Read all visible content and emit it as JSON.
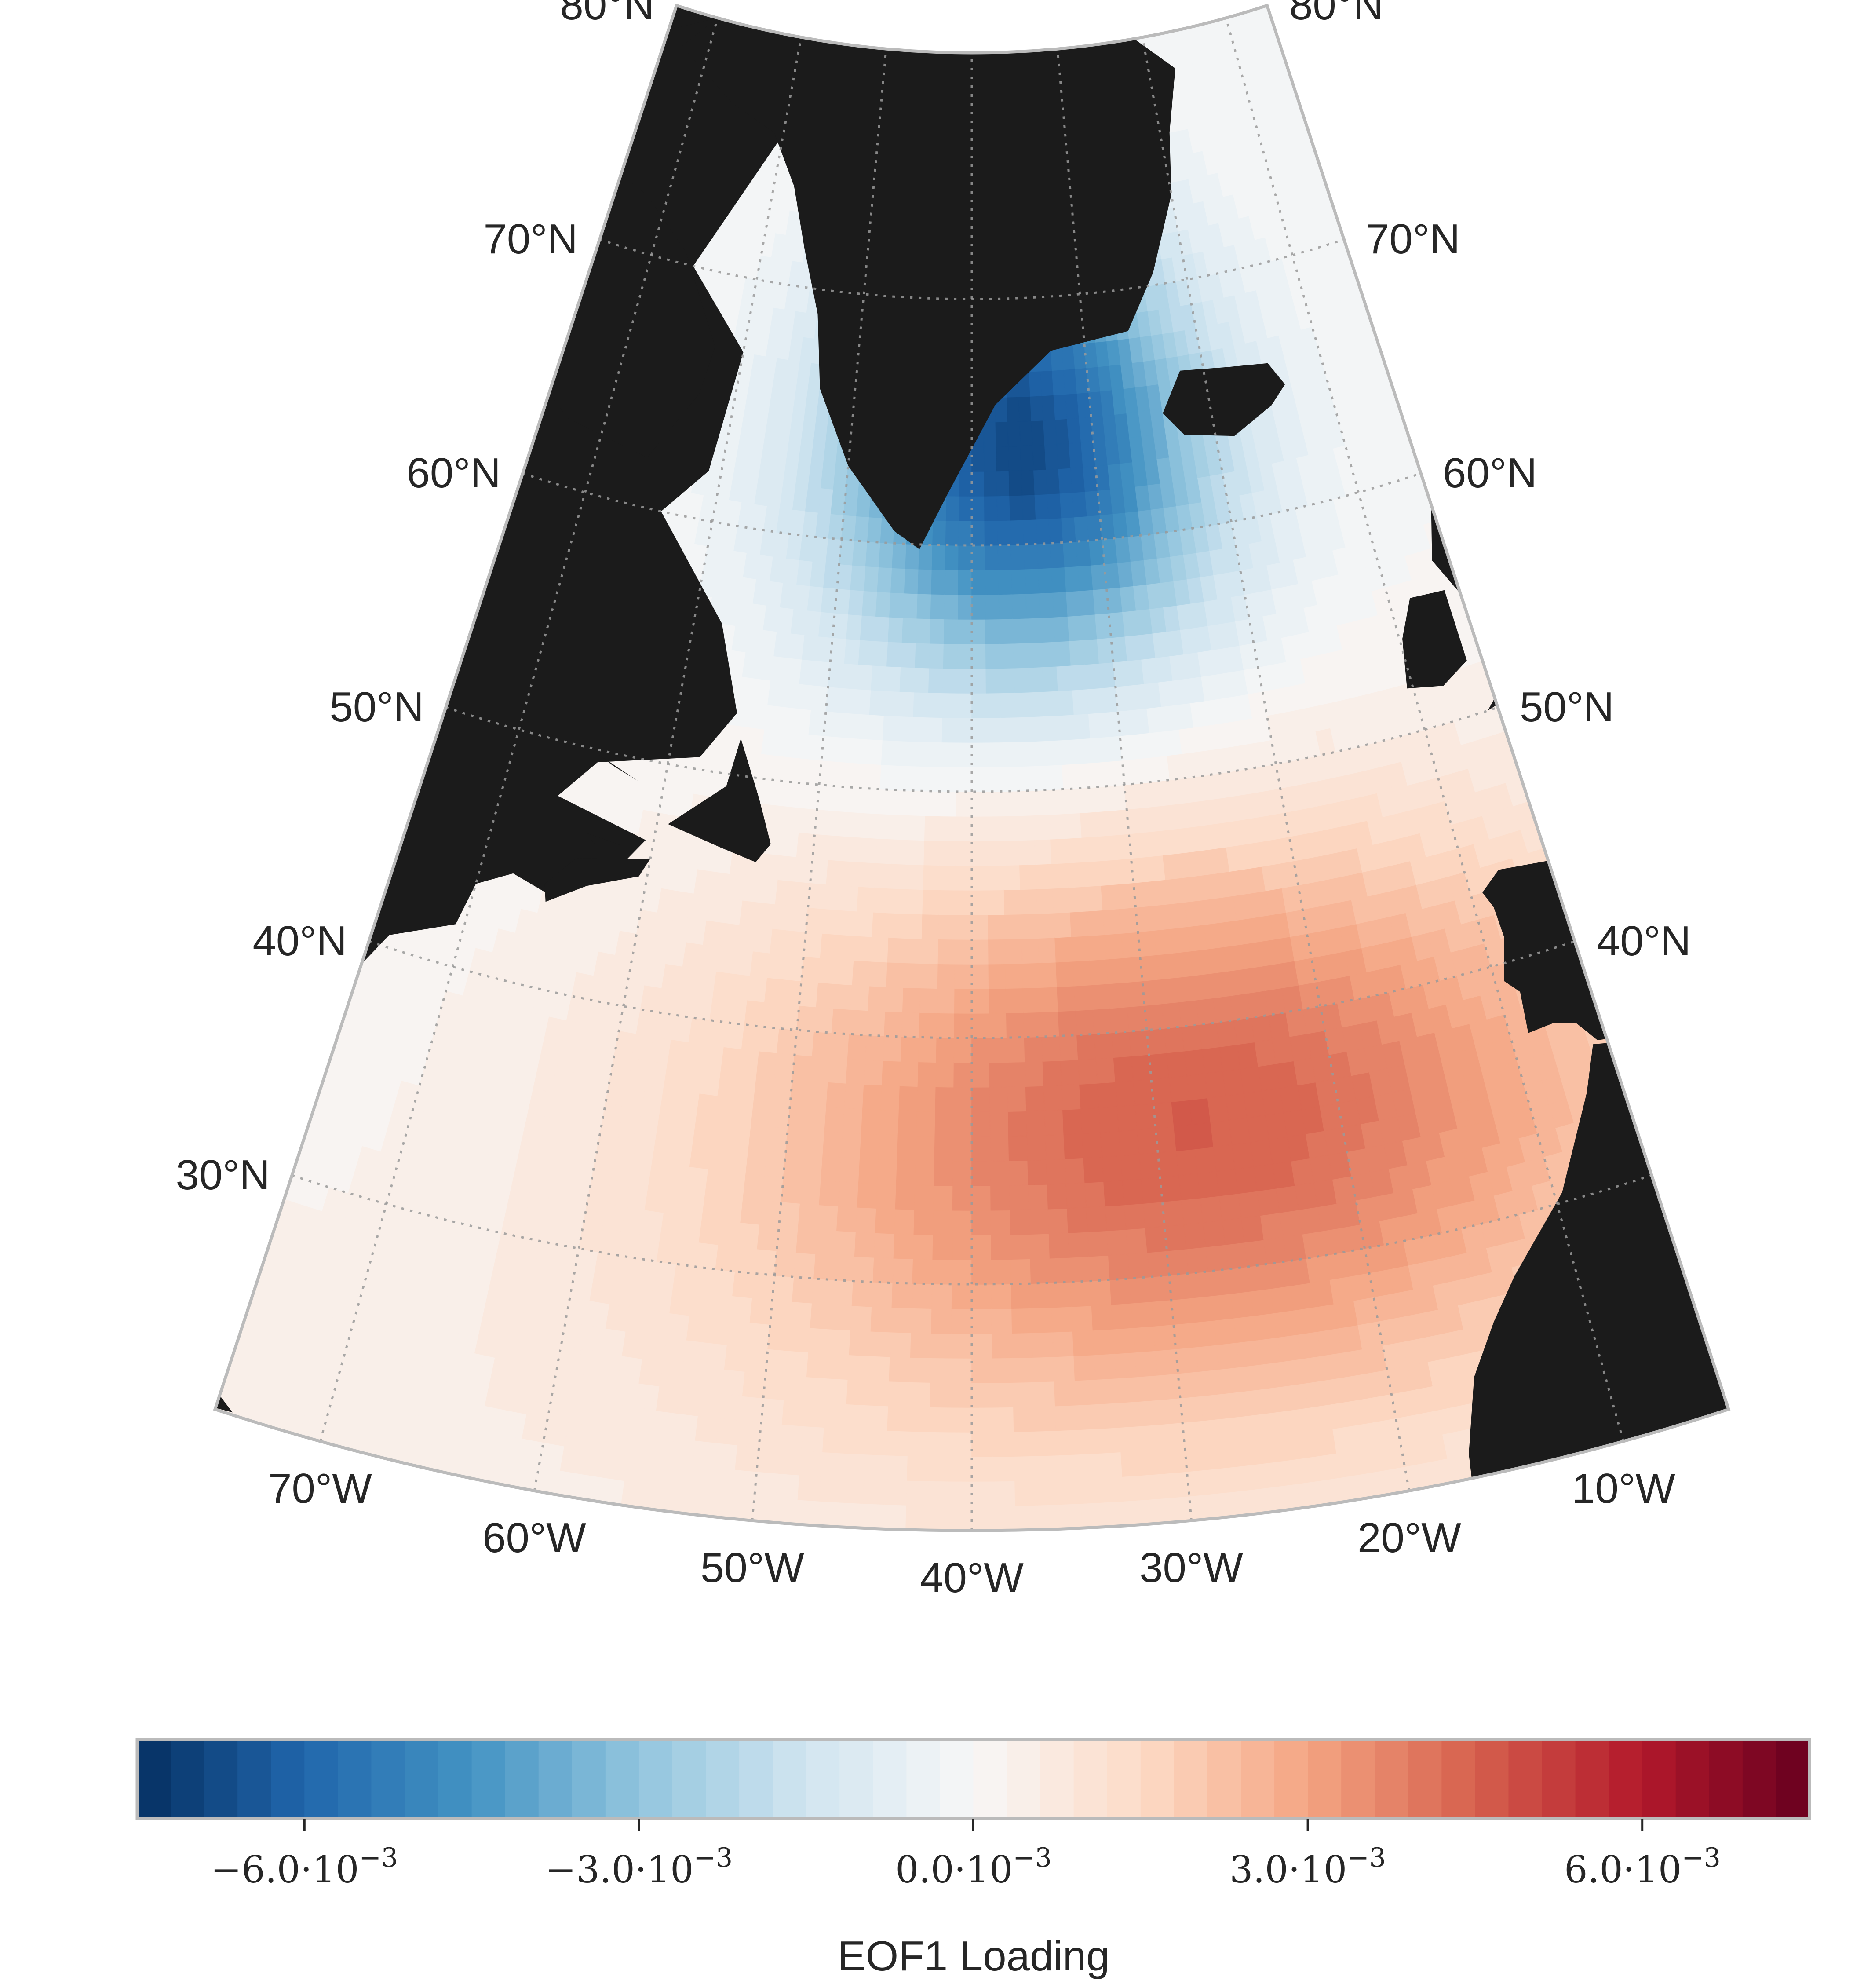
{
  "chart_data": {
    "type": "heatmap",
    "title": "",
    "projection": "conic",
    "extent": {
      "lon": [
        -75,
        -5
      ],
      "lat": [
        20,
        80
      ]
    },
    "grid": true,
    "latitude_labels": {
      "left": [
        "80°N",
        "70°N",
        "60°N",
        "50°N",
        "40°N",
        "30°N"
      ],
      "right": [
        "80°N",
        "70°N",
        "60°N",
        "50°N",
        "40°N"
      ]
    },
    "longitude_labels": [
      "70°W",
      "60°W",
      "50°W",
      "40°W",
      "30°W",
      "20°W",
      "10°W"
    ],
    "field": {
      "negative_center": {
        "lon": -36,
        "lat": 64,
        "value": -0.0068
      },
      "positive_center": {
        "lon": -28,
        "lat": 36,
        "value": 0.0045
      },
      "zero_line_lat": 49
    },
    "land_color": "#1b1b1b",
    "colormap": "RdBu_r",
    "colorbar": {
      "label": "EOF1 Loading",
      "orientation": "horizontal",
      "placement": "bottom",
      "vmin": -0.0075,
      "vmax": 0.0075,
      "levels": 50,
      "ticks": [
        -0.006,
        -0.003,
        0.0,
        0.003,
        0.006
      ],
      "tick_mantissas": [
        "−6.0",
        "−3.0",
        "0.0",
        "3.0",
        "6.0"
      ],
      "tick_multiplier": "10",
      "tick_exponent": "−3",
      "tick_dot": "·"
    }
  }
}
